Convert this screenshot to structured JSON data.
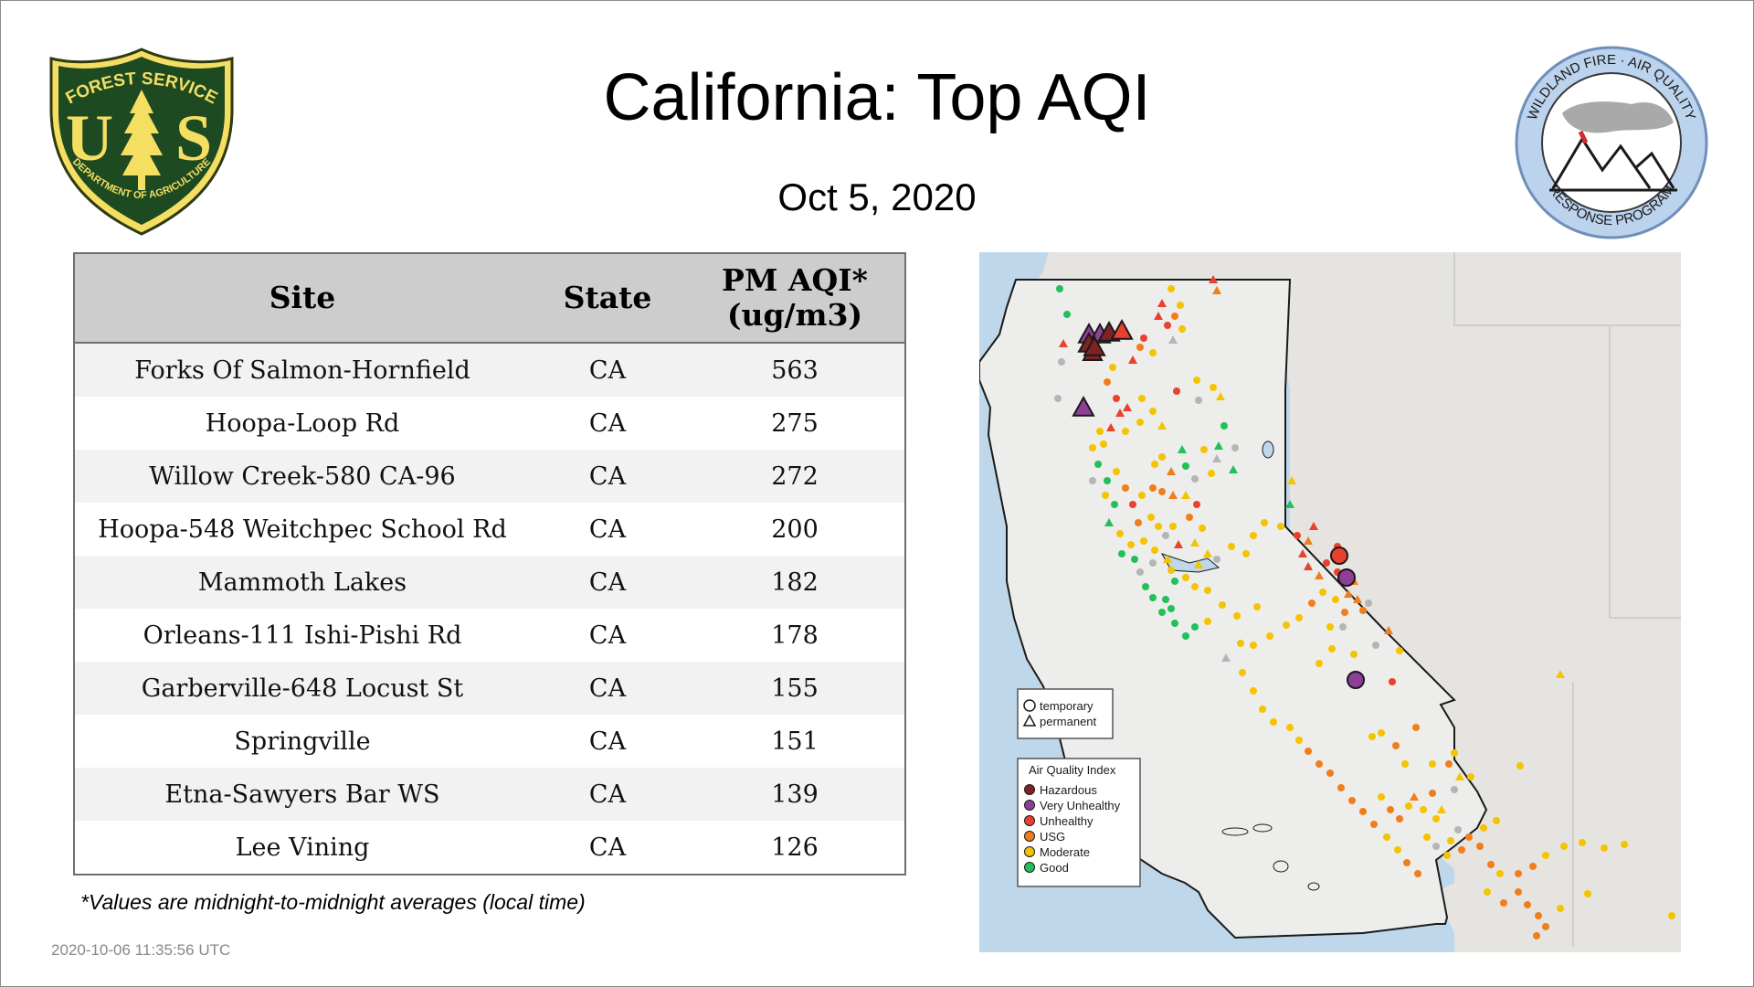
{
  "header": {
    "title": "California: Top AQI",
    "date": "Oct  5, 2020"
  },
  "logos": {
    "left": {
      "icon": "forest-service-shield-icon",
      "top_text": "FOREST SERVICE",
      "letters": "U S",
      "bottom_text": "DEPARTMENT OF AGRICULTURE"
    },
    "right": {
      "icon": "wildland-fire-air-quality-icon",
      "top_text": "WILDLAND FIRE · AIR QUALITY",
      "bottom_text": "RESPONSE PROGRAM"
    }
  },
  "table": {
    "headers": {
      "site": "Site",
      "state": "State",
      "aqi_line1": "PM AQI*",
      "aqi_line2": "(ug/m3)"
    },
    "rows": [
      {
        "site": "Forks Of Salmon-Hornfield",
        "state": "CA",
        "aqi": "563"
      },
      {
        "site": "Hoopa-Loop Rd",
        "state": "CA",
        "aqi": "275"
      },
      {
        "site": "Willow Creek-580 CA-96",
        "state": "CA",
        "aqi": "272"
      },
      {
        "site": "Hoopa-548 Weitchpec School Rd",
        "state": "CA",
        "aqi": "200"
      },
      {
        "site": "Mammoth Lakes",
        "state": "CA",
        "aqi": "182"
      },
      {
        "site": "Orleans-111 Ishi-Pishi Rd",
        "state": "CA",
        "aqi": "178"
      },
      {
        "site": "Garberville-648 Locust St",
        "state": "CA",
        "aqi": "155"
      },
      {
        "site": "Springville",
        "state": "CA",
        "aqi": "151"
      },
      {
        "site": "Etna-Sawyers Bar WS",
        "state": "CA",
        "aqi": "139"
      },
      {
        "site": "Lee Vining",
        "state": "CA",
        "aqi": "126"
      }
    ]
  },
  "footnote": "*Values are midnight-to-midnight averages (local time)",
  "timestamp": "2020-10-06 11:35:56 UTC",
  "map": {
    "shape_legend": {
      "temporary": "temporary",
      "permanent": "permanent"
    },
    "aqi_legend": {
      "title": "Air Quality Index",
      "items": [
        {
          "label": "Hazardous",
          "color": "#7e2323"
        },
        {
          "label": "Very Unhealthy",
          "color": "#8f3f97"
        },
        {
          "label": "Unhealthy",
          "color": "#e8412e"
        },
        {
          "label": "USG",
          "color": "#f07e1b"
        },
        {
          "label": "Moderate",
          "color": "#f5c400"
        },
        {
          "label": "Good",
          "color": "#22c05a"
        }
      ]
    },
    "colors": {
      "ocean": "#bfd7ea",
      "land": "#ececea",
      "border": "#1a1a1a"
    }
  }
}
